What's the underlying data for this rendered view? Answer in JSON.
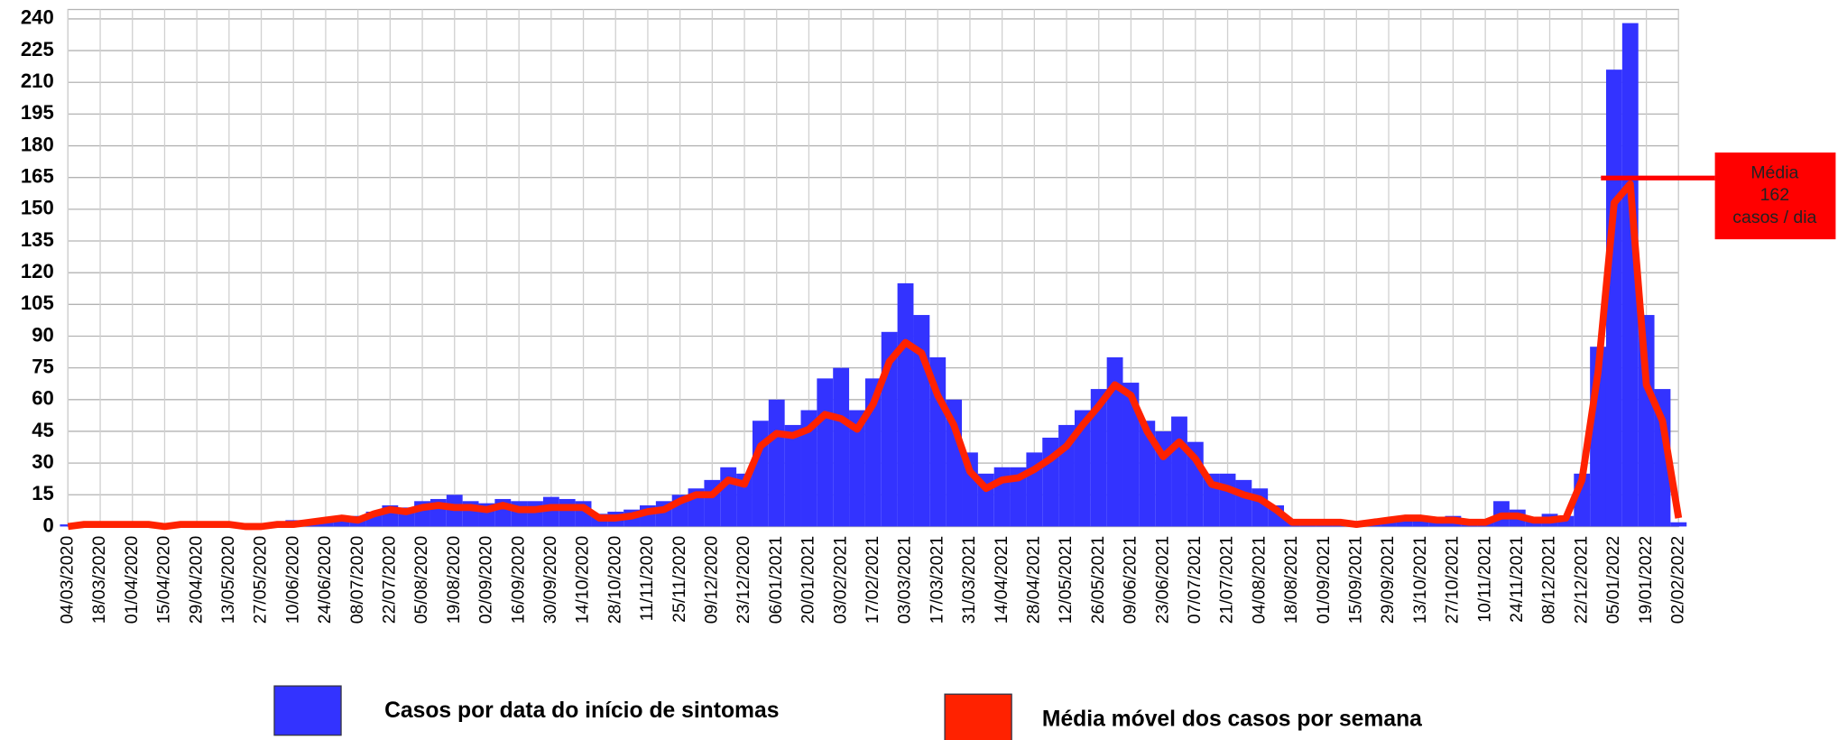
{
  "chart_data": {
    "type": "bar_line",
    "categories": [
      "04/03/2020",
      null,
      "18/03/2020",
      null,
      "01/04/2020",
      null,
      "15/04/2020",
      null,
      "29/04/2020",
      null,
      "13/05/2020",
      null,
      "27/05/2020",
      null,
      "10/06/2020",
      null,
      "24/06/2020",
      null,
      "08/07/2020",
      null,
      "22/07/2020",
      null,
      "05/08/2020",
      null,
      "19/08/2020",
      null,
      "02/09/2020",
      null,
      "16/09/2020",
      null,
      "30/09/2020",
      null,
      "14/10/2020",
      null,
      "28/10/2020",
      null,
      "11/11/2020",
      null,
      "25/11/2020",
      null,
      "09/12/2020",
      null,
      "23/12/2020",
      null,
      "06/01/2021",
      null,
      "20/01/2021",
      null,
      "03/02/2021",
      null,
      "17/02/2021",
      null,
      "03/03/2021",
      null,
      "17/03/2021",
      null,
      "31/03/2021",
      null,
      "14/04/2021",
      null,
      "28/04/2021",
      null,
      "12/05/2021",
      null,
      "26/05/2021",
      null,
      "09/06/2021",
      null,
      "23/06/2021",
      null,
      "07/07/2021",
      null,
      "21/07/2021",
      null,
      "04/08/2021",
      null,
      "18/08/2021",
      null,
      "01/09/2021",
      null,
      "15/09/2021",
      null,
      "29/09/2021",
      null,
      "13/10/2021",
      null,
      "27/10/2021",
      null,
      "10/11/2021",
      null,
      "24/11/2021",
      null,
      "08/12/2021",
      null,
      "22/12/2021",
      null,
      "05/01/2022",
      null,
      "19/01/2022",
      null,
      "02/02/2022"
    ],
    "series": [
      {
        "name": "Casos por data do início de sintomas",
        "color": "#3333ff",
        "kind": "bar",
        "values": [
          1,
          2,
          2,
          2,
          1,
          1,
          1,
          2,
          1,
          1,
          2,
          1,
          1,
          2,
          3,
          3,
          4,
          5,
          5,
          7,
          10,
          9,
          12,
          13,
          15,
          12,
          11,
          13,
          12,
          12,
          14,
          13,
          12,
          6,
          7,
          8,
          10,
          12,
          15,
          18,
          22,
          28,
          25,
          50,
          60,
          48,
          55,
          70,
          75,
          55,
          70,
          92,
          115,
          100,
          80,
          60,
          35,
          25,
          28,
          28,
          35,
          42,
          48,
          55,
          65,
          80,
          68,
          50,
          45,
          52,
          40,
          25,
          25,
          22,
          18,
          10,
          3,
          3,
          3,
          3,
          2,
          3,
          4,
          5,
          5,
          4,
          5,
          3,
          3,
          12,
          8,
          4,
          6,
          5,
          25,
          85,
          216,
          238,
          100,
          65,
          2
        ]
      },
      {
        "name": "Média móvel dos casos por semana",
        "color": "#ff2200",
        "kind": "line",
        "values": [
          0,
          1,
          1,
          1,
          1,
          1,
          0,
          1,
          1,
          1,
          1,
          0,
          0,
          1,
          1,
          2,
          3,
          4,
          3,
          6,
          8,
          7,
          9,
          10,
          9,
          9,
          8,
          10,
          8,
          8,
          9,
          9,
          9,
          4,
          4,
          5,
          7,
          8,
          12,
          15,
          15,
          22,
          20,
          38,
          44,
          43,
          46,
          53,
          51,
          46,
          58,
          78,
          87,
          82,
          62,
          48,
          26,
          18,
          22,
          23,
          27,
          32,
          38,
          48,
          57,
          67,
          62,
          45,
          33,
          40,
          32,
          20,
          18,
          15,
          13,
          8,
          2,
          2,
          2,
          2,
          1,
          2,
          3,
          4,
          4,
          3,
          3,
          2,
          2,
          5,
          5,
          3,
          3,
          4,
          22,
          73,
          153,
          162,
          67,
          50,
          4
        ]
      }
    ],
    "ylim": [
      0,
      240
    ],
    "yticks": [
      0,
      15,
      30,
      45,
      60,
      75,
      90,
      105,
      120,
      135,
      150,
      165,
      180,
      195,
      210,
      225,
      240
    ],
    "grid": true,
    "annotation": {
      "lines": [
        "Média",
        "162",
        "casos / dia"
      ],
      "color": "#ff0000"
    }
  }
}
